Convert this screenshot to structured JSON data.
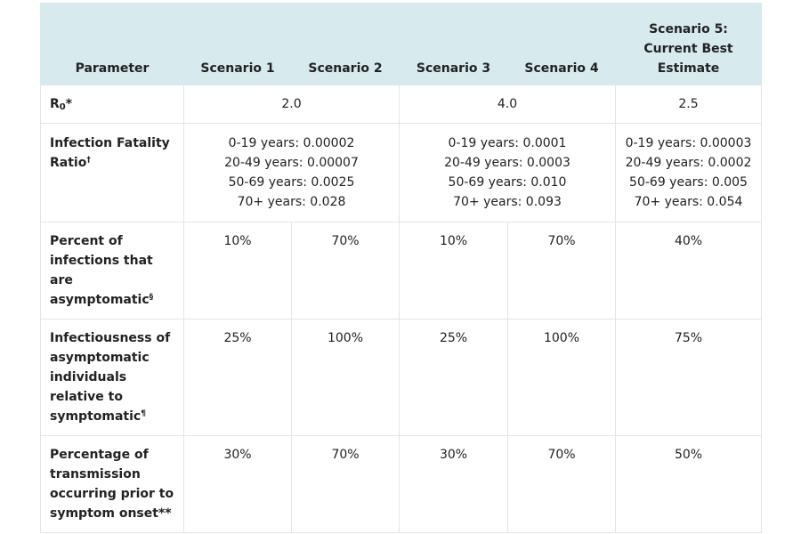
{
  "header": {
    "parameter": "Parameter",
    "scenarios": [
      "Scenario 1",
      "Scenario 2",
      "Scenario 3",
      "Scenario 4"
    ],
    "scenario5_lines": [
      "Scenario 5:",
      "Current Best",
      "Estimate"
    ]
  },
  "rows": {
    "r0": {
      "label_main": "R",
      "label_sub": "0",
      "label_mark": "*",
      "s12": "2.0",
      "s34": "4.0",
      "s5": "2.5"
    },
    "ifr": {
      "label_lines": [
        "Infection Fatality",
        "Ratio"
      ],
      "label_mark": "†",
      "s12": [
        "0-19 years: 0.00002",
        "20-49 years: 0.00007",
        "50-69 years: 0.0025",
        "70+ years: 0.028"
      ],
      "s34": [
        "0-19 years: 0.0001",
        "20-49 years: 0.0003",
        "50-69 years: 0.010",
        "70+ years: 0.093"
      ],
      "s5": [
        "0-19 years: 0.00003",
        "20-49 years: 0.0002",
        "50-69 years: 0.005",
        "70+ years: 0.054"
      ]
    },
    "asymptomatic": {
      "label_lines": [
        "Percent of",
        "infections that",
        "are",
        "asymptomatic"
      ],
      "label_mark": "§",
      "values": [
        "10%",
        "70%",
        "10%",
        "70%",
        "40%"
      ]
    },
    "infectiousness": {
      "label_lines": [
        "Infectiousness of",
        "asymptomatic",
        "individuals",
        "relative to",
        "symptomatic"
      ],
      "label_mark": "¶",
      "values": [
        "25%",
        "100%",
        "25%",
        "100%",
        "75%"
      ]
    },
    "presymptomatic": {
      "label_lines": [
        "Percentage of",
        "transmission",
        "occurring prior to",
        "symptom onset**"
      ],
      "values": [
        "30%",
        "70%",
        "30%",
        "70%",
        "50%"
      ]
    }
  }
}
